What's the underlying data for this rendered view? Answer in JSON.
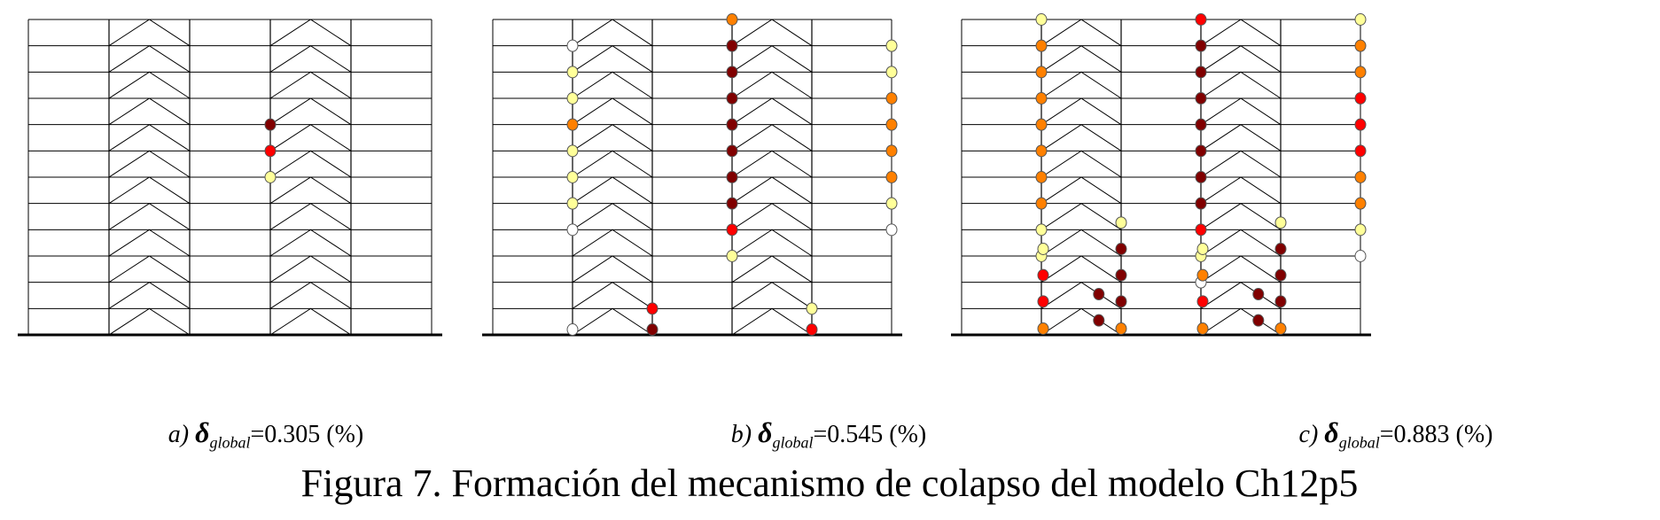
{
  "figure_title": "Figura 7. Formación del mecanismo de colapso del modelo Ch12p5",
  "hinge_colors": {
    "white": "#ffffff",
    "yellow": "#ffff99",
    "orange": "#ff8000",
    "red": "#ff0000",
    "darkred": "#800000"
  },
  "panels": [
    {
      "id": "a",
      "caption_prefix": "a)",
      "delta_symbol": "δ",
      "delta_subscript": "global",
      "value_text": "=0.305 (%)",
      "hinges": [
        {
          "col": 3,
          "level": 8,
          "color": "darkred"
        },
        {
          "col": 3,
          "level": 7,
          "color": "red"
        },
        {
          "col": 3,
          "level": 6,
          "color": "yellow"
        }
      ]
    },
    {
      "id": "b",
      "caption_prefix": "b)",
      "delta_symbol": "δ",
      "delta_subscript": "global",
      "value_text": "=0.545 (%)",
      "hinges": [
        {
          "col": 1,
          "level": 11,
          "color": "white"
        },
        {
          "col": 1,
          "level": 10,
          "color": "yellow"
        },
        {
          "col": 1,
          "level": 9,
          "color": "yellow"
        },
        {
          "col": 1,
          "level": 8,
          "color": "orange"
        },
        {
          "col": 1,
          "level": 7,
          "color": "yellow"
        },
        {
          "col": 1,
          "level": 6,
          "color": "yellow"
        },
        {
          "col": 1,
          "level": 5,
          "color": "yellow"
        },
        {
          "col": 1,
          "level": 4,
          "color": "white"
        },
        {
          "col": 1,
          "level": 0,
          "color": "white"
        },
        {
          "col": 3,
          "level": 12,
          "color": "orange"
        },
        {
          "col": 3,
          "level": 11,
          "color": "darkred"
        },
        {
          "col": 3,
          "level": 10,
          "color": "darkred"
        },
        {
          "col": 3,
          "level": 9,
          "color": "darkred"
        },
        {
          "col": 3,
          "level": 8,
          "color": "darkred"
        },
        {
          "col": 3,
          "level": 7,
          "color": "darkred"
        },
        {
          "col": 3,
          "level": 6,
          "color": "darkred"
        },
        {
          "col": 3,
          "level": 5,
          "color": "darkred"
        },
        {
          "col": 3,
          "level": 4,
          "color": "red"
        },
        {
          "col": 3,
          "level": 3,
          "color": "yellow"
        },
        {
          "col": 2,
          "level": 1,
          "color": "red"
        },
        {
          "col": 2,
          "level": 0,
          "color": "darkred"
        },
        {
          "col": 4,
          "level": 1,
          "color": "yellow"
        },
        {
          "col": 4,
          "level": 0,
          "color": "red"
        },
        {
          "col": 5,
          "level": 11,
          "color": "yellow"
        },
        {
          "col": 5,
          "level": 10,
          "color": "yellow"
        },
        {
          "col": 5,
          "level": 9,
          "color": "orange"
        },
        {
          "col": 5,
          "level": 8,
          "color": "orange"
        },
        {
          "col": 5,
          "level": 7,
          "color": "orange"
        },
        {
          "col": 5,
          "level": 6,
          "color": "orange"
        },
        {
          "col": 5,
          "level": 5,
          "color": "yellow"
        },
        {
          "col": 5,
          "level": 4,
          "color": "white"
        }
      ]
    },
    {
      "id": "c",
      "caption_prefix": "c)",
      "delta_symbol": "δ",
      "delta_subscript": "global",
      "value_text": "=0.883 (%)",
      "hinges": [
        {
          "col": 1,
          "level": 12,
          "color": "yellow"
        },
        {
          "col": 1,
          "level": 11,
          "color": "orange"
        },
        {
          "col": 1,
          "level": 10,
          "color": "orange"
        },
        {
          "col": 1,
          "level": 9,
          "color": "orange"
        },
        {
          "col": 1,
          "level": 8,
          "color": "orange"
        },
        {
          "col": 1,
          "level": 7,
          "color": "orange"
        },
        {
          "col": 1,
          "level": 6,
          "color": "orange"
        },
        {
          "col": 1,
          "level": 5,
          "color": "orange"
        },
        {
          "col": 1,
          "level": 4,
          "color": "yellow"
        },
        {
          "col": 1,
          "level": 3,
          "color": "yellow"
        },
        {
          "col": 3,
          "level": 12,
          "color": "red"
        },
        {
          "col": 3,
          "level": 11,
          "color": "darkred"
        },
        {
          "col": 3,
          "level": 10,
          "color": "darkred"
        },
        {
          "col": 3,
          "level": 9,
          "color": "darkred"
        },
        {
          "col": 3,
          "level": 8,
          "color": "darkred"
        },
        {
          "col": 3,
          "level": 7,
          "color": "darkred"
        },
        {
          "col": 3,
          "level": 6,
          "color": "darkred"
        },
        {
          "col": 3,
          "level": 5,
          "color": "darkred"
        },
        {
          "col": 3,
          "level": 4,
          "color": "red"
        },
        {
          "col": 3,
          "level": 3,
          "color": "yellow"
        },
        {
          "col": 3,
          "level": 2,
          "color": "white"
        },
        {
          "col": 5,
          "level": 12,
          "color": "yellow"
        },
        {
          "col": 5,
          "level": 11,
          "color": "orange"
        },
        {
          "col": 5,
          "level": 10,
          "color": "orange"
        },
        {
          "col": 5,
          "level": 9,
          "color": "red"
        },
        {
          "col": 5,
          "level": 8,
          "color": "red"
        },
        {
          "col": 5,
          "level": 7,
          "color": "red"
        },
        {
          "col": 5,
          "level": 6,
          "color": "orange"
        },
        {
          "col": 5,
          "level": 5,
          "color": "orange"
        },
        {
          "col": 5,
          "level": 4,
          "color": "yellow"
        },
        {
          "col": 5,
          "level": 3,
          "color": "white"
        }
      ],
      "brace_hinges": [
        {
          "bay": 1,
          "level": 4,
          "side": "right-top",
          "color": "yellow"
        },
        {
          "bay": 1,
          "level": 3,
          "side": "left-top",
          "color": "yellow"
        },
        {
          "bay": 1,
          "level": 3,
          "side": "right-top",
          "color": "darkred"
        },
        {
          "bay": 1,
          "level": 2,
          "side": "left-top",
          "color": "red"
        },
        {
          "bay": 1,
          "level": 2,
          "side": "right-top",
          "color": "darkred"
        },
        {
          "bay": 1,
          "level": 1,
          "side": "left-top",
          "color": "red"
        },
        {
          "bay": 1,
          "level": 1,
          "side": "mid",
          "color": "darkred"
        },
        {
          "bay": 1,
          "level": 1,
          "side": "right-top",
          "color": "darkred"
        },
        {
          "bay": 1,
          "level": 0,
          "side": "left-top",
          "color": "orange"
        },
        {
          "bay": 1,
          "level": 0,
          "side": "mid",
          "color": "darkred"
        },
        {
          "bay": 1,
          "level": 0,
          "side": "right-top",
          "color": "orange"
        },
        {
          "bay": 3,
          "level": 4,
          "side": "right-top",
          "color": "yellow"
        },
        {
          "bay": 3,
          "level": 3,
          "side": "left-top",
          "color": "yellow"
        },
        {
          "bay": 3,
          "level": 3,
          "side": "right-top",
          "color": "darkred"
        },
        {
          "bay": 3,
          "level": 2,
          "side": "left-top",
          "color": "orange"
        },
        {
          "bay": 3,
          "level": 2,
          "side": "right-top",
          "color": "darkred"
        },
        {
          "bay": 3,
          "level": 1,
          "side": "left-top",
          "color": "red"
        },
        {
          "bay": 3,
          "level": 1,
          "side": "mid",
          "color": "darkred"
        },
        {
          "bay": 3,
          "level": 1,
          "side": "right-top",
          "color": "darkred"
        },
        {
          "bay": 3,
          "level": 0,
          "side": "left-top",
          "color": "orange"
        },
        {
          "bay": 3,
          "level": 0,
          "side": "mid",
          "color": "darkred"
        },
        {
          "bay": 3,
          "level": 0,
          "side": "right-top",
          "color": "orange"
        }
      ]
    }
  ]
}
